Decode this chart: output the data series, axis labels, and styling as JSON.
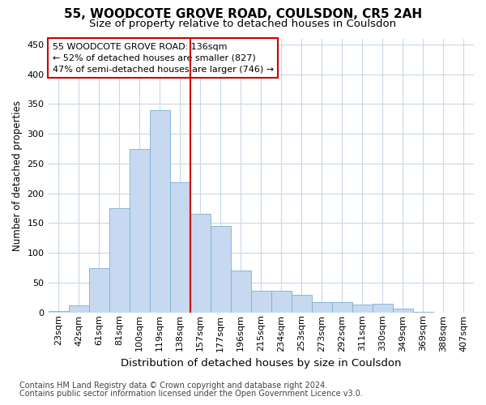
{
  "title": "55, WOODCOTE GROVE ROAD, COULSDON, CR5 2AH",
  "subtitle": "Size of property relative to detached houses in Coulsdon",
  "xlabel": "Distribution of detached houses by size in Coulsdon",
  "ylabel": "Number of detached properties",
  "footnote1": "Contains HM Land Registry data © Crown copyright and database right 2024.",
  "footnote2": "Contains public sector information licensed under the Open Government Licence v3.0.",
  "categories": [
    "23sqm",
    "42sqm",
    "61sqm",
    "81sqm",
    "100sqm",
    "119sqm",
    "138sqm",
    "157sqm",
    "177sqm",
    "196sqm",
    "215sqm",
    "234sqm",
    "253sqm",
    "273sqm",
    "292sqm",
    "311sqm",
    "330sqm",
    "349sqm",
    "369sqm",
    "388sqm",
    "407sqm"
  ],
  "values": [
    2,
    12,
    75,
    175,
    275,
    340,
    218,
    165,
    145,
    70,
    37,
    37,
    29,
    18,
    17,
    13,
    15,
    6,
    1,
    0,
    0
  ],
  "bar_color": "#c6d9f0",
  "bar_edge_color": "#7bafd4",
  "line_color": "#cc0000",
  "line_x_index": 6,
  "annotation_title": "55 WOODCOTE GROVE ROAD: 136sqm",
  "annotation_line1": "← 52% of detached houses are smaller (827)",
  "annotation_line2": "47% of semi-detached houses are larger (746) →",
  "annotation_box_color": "#ffffff",
  "annotation_box_edge": "#cc0000",
  "ylim": [
    0,
    460
  ],
  "yticks": [
    0,
    50,
    100,
    150,
    200,
    250,
    300,
    350,
    400,
    450
  ],
  "grid_color": "#c8d8e8",
  "title_fontsize": 11,
  "subtitle_fontsize": 9.5,
  "xlabel_fontsize": 9.5,
  "ylabel_fontsize": 8.5,
  "tick_fontsize": 8,
  "annot_fontsize": 8,
  "footnote_fontsize": 7
}
